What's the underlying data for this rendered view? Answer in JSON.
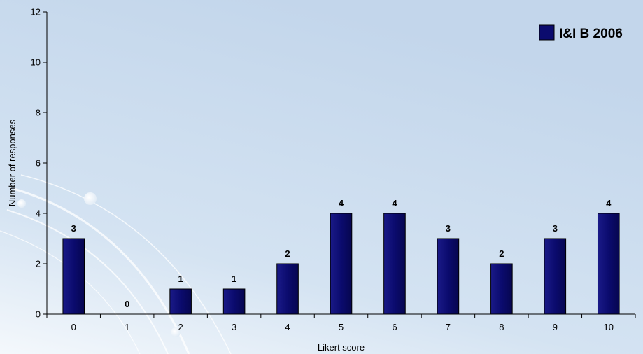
{
  "chart_data": {
    "type": "bar",
    "categories": [
      "0",
      "1",
      "2",
      "3",
      "4",
      "5",
      "6",
      "7",
      "8",
      "9",
      "10"
    ],
    "series": [
      {
        "name": "I&I B 2006",
        "values": [
          3,
          0,
          1,
          1,
          2,
          4,
          4,
          3,
          2,
          3,
          4
        ],
        "color": "#0b0b6e"
      }
    ],
    "xlabel": "Likert score",
    "ylabel": "Number of responses",
    "ylim": [
      0,
      12
    ],
    "yticks": [
      0,
      2,
      4,
      6,
      8,
      10,
      12
    ],
    "grid": false,
    "legend_position": "top-right",
    "data_labels": true
  }
}
